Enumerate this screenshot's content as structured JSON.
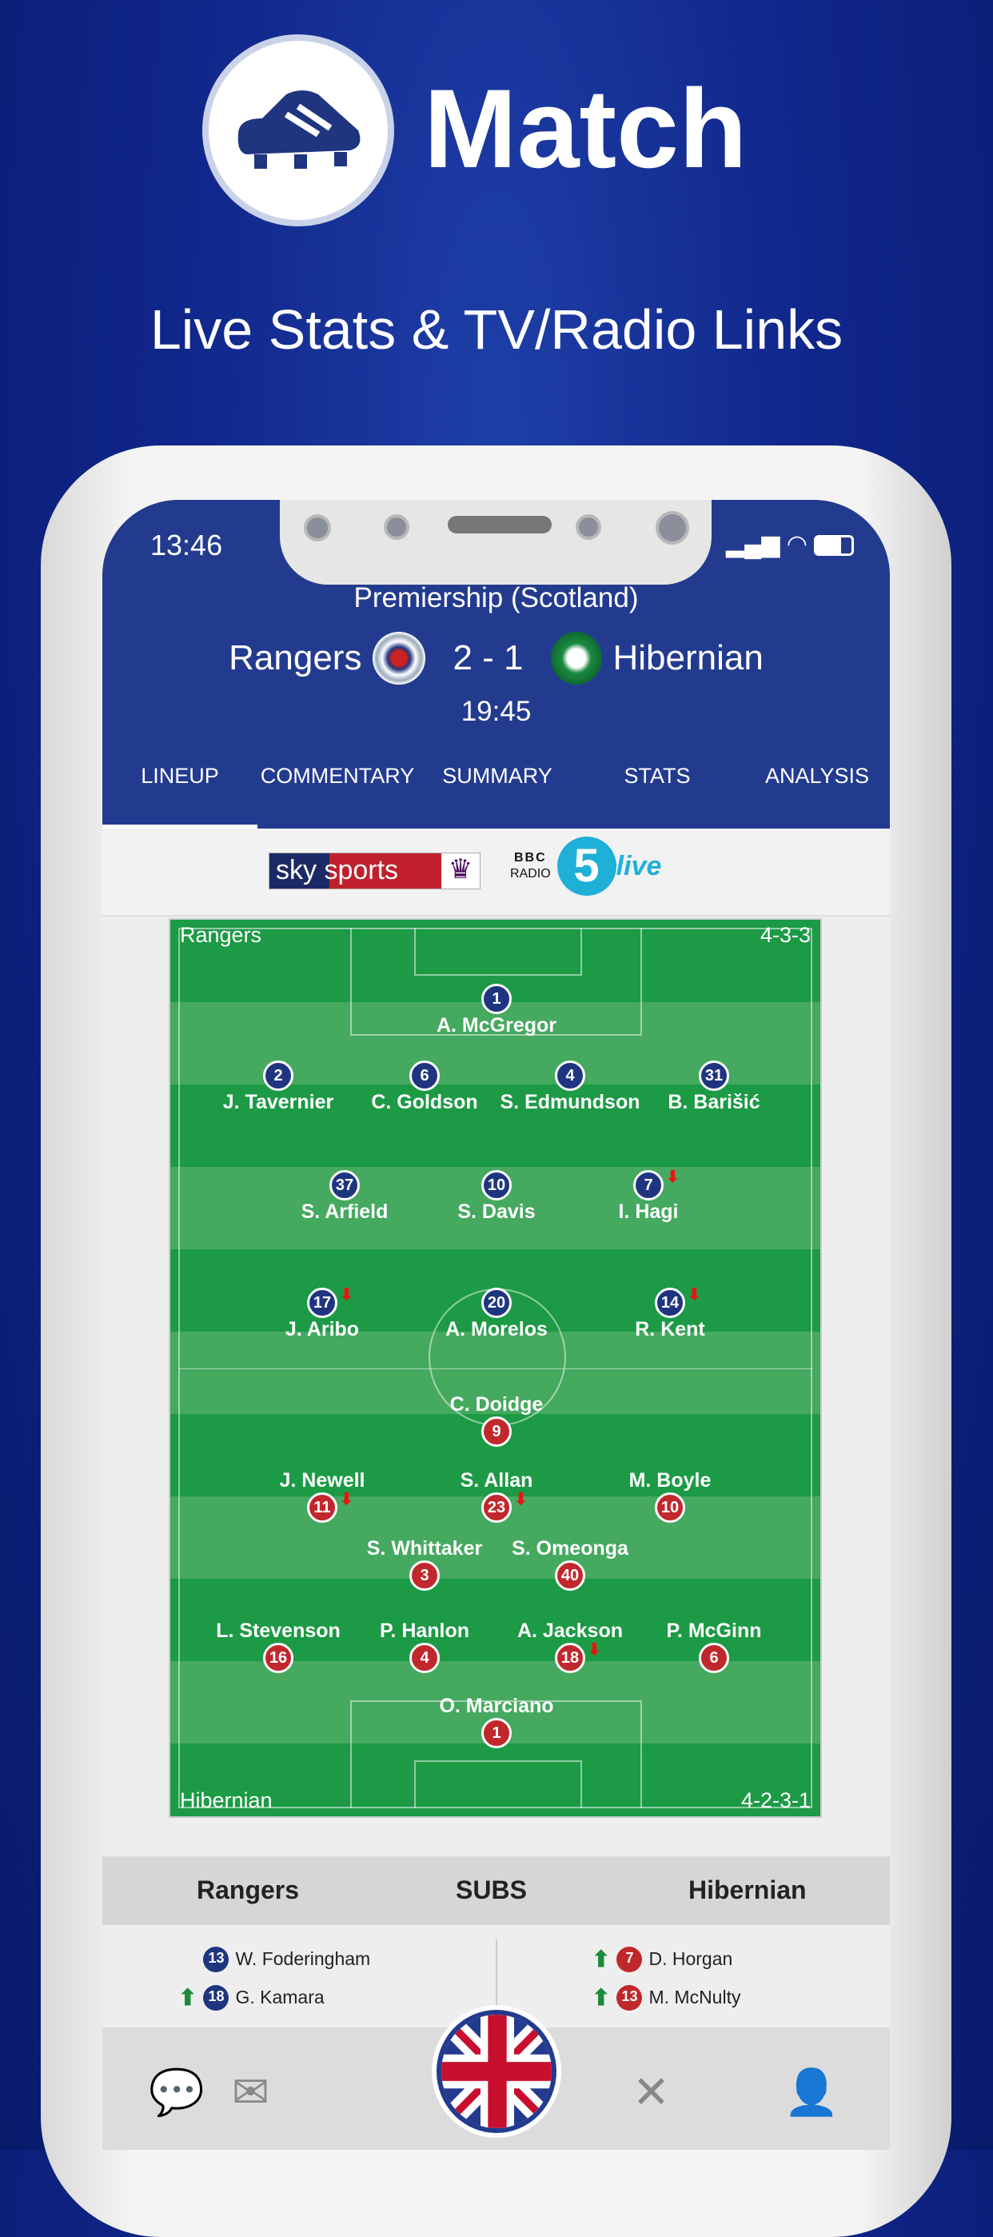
{
  "promo": {
    "title": "Match",
    "subtitle": "Live Stats & TV/Radio Links",
    "logo_icon": "football-boot-icon"
  },
  "status_bar": {
    "time": "13:46"
  },
  "match": {
    "competition": "Premiership (Scotland)",
    "home": "Rangers",
    "away": "Hibernian",
    "score": "2 - 1",
    "time": "19:45"
  },
  "tabs": [
    {
      "label": "LINEUP",
      "active": true
    },
    {
      "label": "COMMENTARY"
    },
    {
      "label": "SUMMARY"
    },
    {
      "label": "STATS"
    },
    {
      "label": "ANALYSIS"
    }
  ],
  "broadcasters": {
    "tv": "sky sports",
    "radio_top": "BBC",
    "radio_mid": "RADIO",
    "radio_num": "5",
    "radio_live": "live"
  },
  "pitch": {
    "home": {
      "team": "Rangers",
      "formation": "4-3-3",
      "rows": [
        [
          {
            "n": "1",
            "name": "A. McGregor"
          }
        ],
        [
          {
            "n": "2",
            "name": "J. Tavernier"
          },
          {
            "n": "6",
            "name": "C. Goldson"
          },
          {
            "n": "4",
            "name": "S. Edmundson"
          },
          {
            "n": "31",
            "name": "B. Barišić"
          }
        ],
        [
          {
            "n": "37",
            "name": "S. Arfield"
          },
          {
            "n": "10",
            "name": "S. Davis"
          },
          {
            "n": "7",
            "name": "I. Hagi",
            "off": true
          }
        ],
        [
          {
            "n": "17",
            "name": "J. Aribo",
            "off": true
          },
          {
            "n": "20",
            "name": "A. Morelos"
          },
          {
            "n": "14",
            "name": "R. Kent",
            "off": true
          }
        ]
      ]
    },
    "away": {
      "team": "Hibernian",
      "formation": "4-2-3-1",
      "rows": [
        [
          {
            "n": "9",
            "name": "C. Doidge"
          }
        ],
        [
          {
            "n": "11",
            "name": "J. Newell",
            "off": true
          },
          {
            "n": "23",
            "name": "S. Allan",
            "off": true
          },
          {
            "n": "10",
            "name": "M. Boyle"
          }
        ],
        [
          {
            "n": "3",
            "name": "S. Whittaker"
          },
          {
            "n": "40",
            "name": "S. Omeonga"
          }
        ],
        [
          {
            "n": "16",
            "name": "L. Stevenson"
          },
          {
            "n": "4",
            "name": "P. Hanlon"
          },
          {
            "n": "18",
            "name": "A. Jackson",
            "off": true
          },
          {
            "n": "6",
            "name": "P. McGinn"
          }
        ],
        [
          {
            "n": "1",
            "name": "O. Marciano"
          }
        ]
      ]
    }
  },
  "subs": {
    "title": "SUBS",
    "home_label": "Rangers",
    "away_label": "Hibernian",
    "home": [
      {
        "n": "13",
        "name": "W. Foderingham",
        "on": false
      },
      {
        "n": "18",
        "name": "G. Kamara",
        "on": true
      }
    ],
    "away": [
      {
        "n": "7",
        "name": "D. Horgan",
        "on": true
      },
      {
        "n": "13",
        "name": "M. McNulty",
        "on": true
      }
    ]
  },
  "tabbar": [
    {
      "icon": "chat-icon"
    },
    {
      "icon": "mail-icon"
    },
    {
      "icon": "uk-flag-icon"
    },
    {
      "icon": "cutlery-icon"
    },
    {
      "icon": "profile-icon"
    }
  ],
  "colors": {
    "header": "#233b8f",
    "home": "#1f3580",
    "away": "#c0282c",
    "pitch": "#1c9a45"
  }
}
